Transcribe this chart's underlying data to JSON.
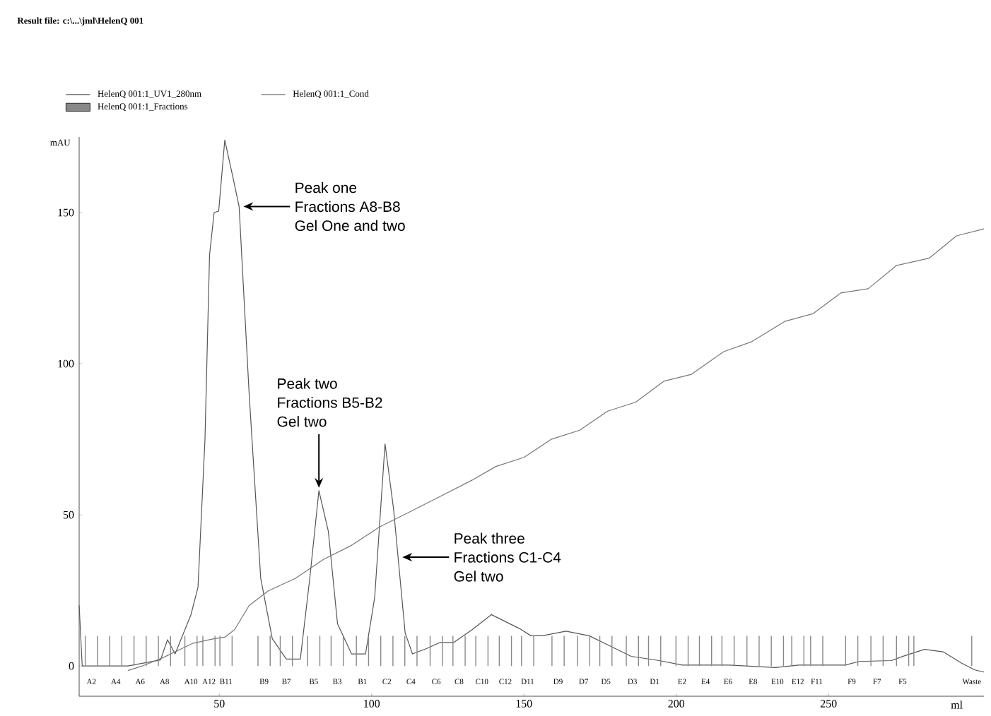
{
  "chart_data": {
    "type": "line",
    "title": "Result file: c:\\...\\jml\\HelenQ 001",
    "xlabel": "ml",
    "ylabel": "mAU",
    "xlim": [
      4,
      301
    ],
    "ylim": [
      -10,
      175
    ],
    "xticks": [
      50,
      100,
      150,
      200,
      250
    ],
    "yticks": [
      0,
      50,
      100,
      150
    ],
    "legend": "top",
    "series": [
      {
        "name": "HelenQ 001:1_UV1_280nm",
        "color": "#555555",
        "line_style": "solid",
        "x": [
          4,
          5,
          20,
          30.7,
          33,
          35.5,
          40.7,
          43,
          45.3,
          46.8,
          48.3,
          49.8,
          51.8,
          54.4,
          56.5,
          59.8,
          63.6,
          67.4,
          72,
          76.6,
          79.7,
          82.7,
          85.8,
          88.8,
          93.4,
          98,
          101,
          104.4,
          107.2,
          111,
          113.4,
          117.9,
          122.5,
          127,
          133,
          139.3,
          148.5,
          152.3,
          156,
          163.8,
          171.4,
          177.5,
          185.2,
          194.4,
          202,
          217.3,
          232.6,
          240.2,
          255.5,
          260,
          270.6,
          275,
          281.5,
          287.6,
          293.6,
          298,
          301
        ],
        "values": [
          20,
          0,
          0,
          2,
          8.7,
          4,
          17,
          26,
          75,
          136,
          150,
          150.5,
          174,
          162,
          152,
          90,
          29,
          9,
          2.3,
          2.3,
          29,
          58,
          44.5,
          14,
          4,
          4,
          22.6,
          73.5,
          52,
          11,
          4,
          5.7,
          7.8,
          7.8,
          12,
          17,
          12.4,
          10,
          10,
          11.5,
          10,
          7,
          3.2,
          1.8,
          0.3,
          0.3,
          -0.5,
          0.3,
          0.3,
          1.5,
          1.8,
          3.4,
          5.5,
          4.7,
          1,
          -1.3,
          -2
        ]
      },
      {
        "name": "HelenQ 001:1_Cond",
        "color": "#777777",
        "line_style": "solid",
        "x": [
          20,
          24.7,
          32,
          41.3,
          47.6,
          52,
          55,
          59.8,
          66,
          75,
          84.3,
          93.4,
          102.6,
          111.8,
          123.9,
          133,
          140.8,
          150,
          159,
          168.3,
          177.5,
          186.7,
          195.9,
          205,
          215.6,
          224.8,
          235.6,
          244.8,
          254,
          263,
          272.3,
          283,
          292,
          301
        ],
        "values": [
          -1.5,
          0,
          3,
          7.5,
          8.9,
          9.6,
          12,
          20,
          24.8,
          29,
          35.3,
          39.9,
          46,
          50.6,
          56.8,
          61.5,
          66,
          69,
          75,
          78,
          84.3,
          87.3,
          94.2,
          96.5,
          104,
          107.3,
          114,
          116.5,
          123.4,
          124.8,
          132.5,
          134.9,
          142.3,
          144.6
        ]
      },
      {
        "name": "HelenQ 001:1_Fractions",
        "type": "bar",
        "color": "#888888",
        "x": [
          6,
          10,
          14,
          18,
          22,
          26,
          30,
          34,
          38.7,
          42.7,
          44.6,
          48.6,
          50.2,
          54.2,
          62.7,
          66.7,
          70,
          74,
          79,
          83,
          86.7,
          90.7,
          95,
          99,
          103,
          107,
          110.9,
          114.9,
          119.2,
          123.2,
          126.7,
          130.7,
          134.2,
          138.2,
          141.9,
          145.9,
          149.2,
          153.2,
          159.2,
          163.2,
          167.6,
          171.6,
          174.9,
          178.9,
          183.6,
          187.6,
          190.9,
          194.9,
          199.9,
          203.9,
          207.6,
          211.6,
          215,
          219,
          223.2,
          227.2,
          231.2,
          235.2,
          237.9,
          241.9,
          244.1,
          248.1,
          255.6,
          259.6,
          263.9,
          267.9,
          272.3,
          276.3,
          278,
          297
        ],
        "values": [
          10,
          10,
          10,
          10,
          10,
          10,
          10,
          10,
          10,
          10,
          10,
          10,
          10,
          10,
          10,
          10,
          10,
          10,
          10,
          10,
          10,
          10,
          10,
          10,
          10,
          10,
          10,
          10,
          10,
          10,
          10,
          10,
          10,
          10,
          10,
          10,
          10,
          10,
          10,
          10,
          10,
          10,
          10,
          10,
          10,
          10,
          10,
          10,
          10,
          10,
          10,
          10,
          10,
          10,
          10,
          10,
          10,
          10,
          10,
          10,
          10,
          10,
          10,
          10,
          10,
          10,
          10,
          10,
          10,
          10
        ],
        "value_labels": [
          "A2",
          null,
          "A4",
          null,
          "A6",
          null,
          "A8",
          null,
          "A10",
          null,
          "A12",
          null,
          "B11",
          null,
          "B9",
          null,
          "B7",
          null,
          "B5",
          null,
          "B3",
          null,
          "B1",
          null,
          "C2",
          null,
          "C4",
          null,
          "C6",
          null,
          "C8",
          null,
          "C10",
          null,
          "C12",
          null,
          "D11",
          null,
          "D9",
          null,
          "D7",
          null,
          "D5",
          null,
          "D3",
          null,
          "D1",
          null,
          "E2",
          null,
          "E4",
          null,
          "E6",
          null,
          "E8",
          null,
          "E10",
          null,
          "E12",
          null,
          "F11",
          null,
          "F9",
          null,
          "F7",
          null,
          "F5",
          null,
          null,
          "Waste"
        ]
      }
    ],
    "annotations": [
      "Peak one",
      {
        "text": "Fractions A8-B8",
        "x": 56.5,
        "y": 152
      },
      "Gel One and two",
      "Peak two",
      "Fractions B5-B2",
      {
        "text": "Gel two",
        "x": 82.7,
        "y": 58
      },
      "Peak three",
      {
        "text": "Fractions C1-C4",
        "x": 108.7,
        "y": 36
      },
      "Gel two"
    ]
  }
}
